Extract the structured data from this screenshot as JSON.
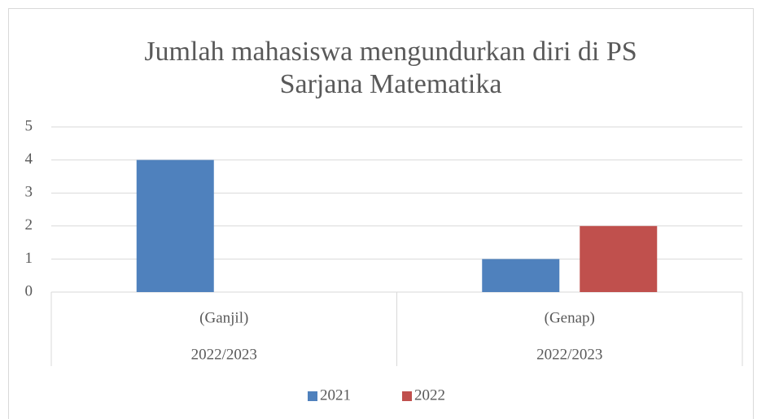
{
  "chart_data": {
    "type": "bar",
    "title": [
      "Jumlah mahasiswa mengundurkan diri di PS",
      "Sarjana Matematika"
    ],
    "categories": [
      "(Ganjil)",
      "(Genap)"
    ],
    "category_groups": [
      "2022/2023",
      "2022/2023"
    ],
    "series": [
      {
        "name": "2021",
        "color": "#4f81bd",
        "values": [
          4,
          1
        ]
      },
      {
        "name": "2022",
        "color": "#c0504d",
        "values": [
          0,
          2
        ]
      }
    ],
    "ylim": [
      0,
      5
    ],
    "yticks": [
      0,
      1,
      2,
      3,
      4,
      5
    ],
    "grid": true,
    "legend": "bottom"
  }
}
